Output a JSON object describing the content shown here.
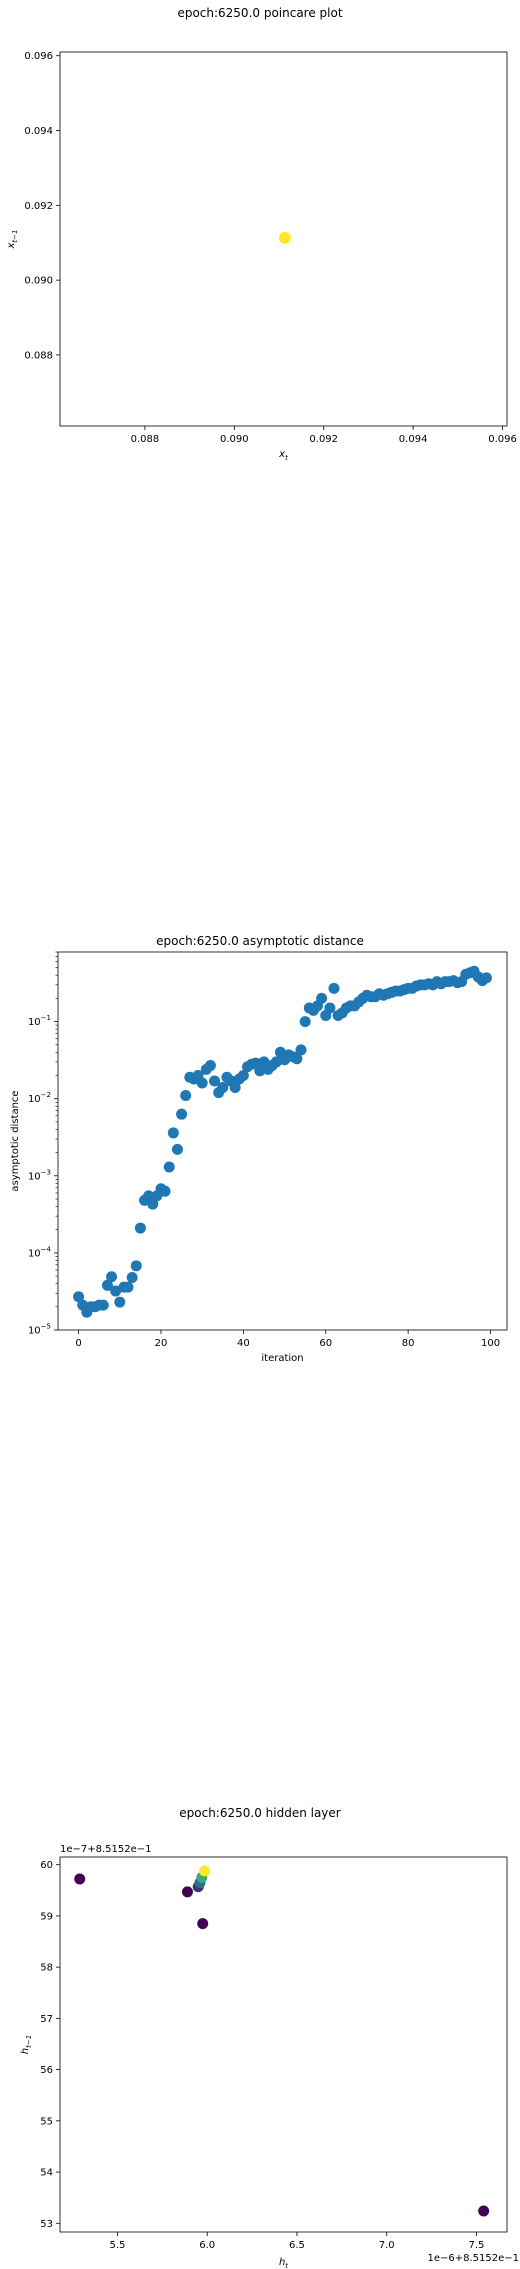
{
  "colors": {
    "viridis_low": "#440154",
    "viridis_high": "#fde725",
    "blue": "#1f77b4"
  },
  "chart_data": [
    {
      "type": "scatter",
      "title": "epoch:6250.0 poincare plot",
      "xlabel": "x_t",
      "ylabel": "x_{t-1}",
      "xlim": [
        0.0861,
        0.0961
      ],
      "ylim": [
        0.0861,
        0.0961
      ],
      "xticks": [
        0.088,
        0.09,
        0.092,
        0.094,
        0.096
      ],
      "xtick_labels": [
        "0.088",
        "0.090",
        "0.092",
        "0.094",
        "0.096"
      ],
      "yticks": [
        0.088,
        0.09,
        0.092,
        0.094,
        0.096
      ],
      "ytick_labels": [
        "0.088",
        "0.090",
        "0.092",
        "0.094",
        "0.096"
      ],
      "points": [
        {
          "x": 0.09113,
          "y": 0.09113
        }
      ],
      "point_color": "#fde725"
    },
    {
      "type": "scatter",
      "title": "epoch:6250.0 asymptotic distance",
      "xlabel": "iteration",
      "ylabel": "asymptotic distance",
      "yscale": "log",
      "xlim": [
        -5,
        104
      ],
      "ylim": [
        1e-05,
        0.8
      ],
      "xticks": [
        0,
        20,
        40,
        60,
        80,
        100
      ],
      "xtick_labels": [
        "0",
        "20",
        "40",
        "60",
        "80",
        "100"
      ],
      "yticks": [
        1e-05,
        0.0001,
        0.001,
        0.01,
        0.1
      ],
      "ytick_exponents": [
        "−5",
        "−4",
        "−3",
        "−2",
        "−1"
      ],
      "ytick_base": "10",
      "x": [
        0,
        1,
        2,
        3,
        4,
        5,
        6,
        7,
        8,
        9,
        10,
        11,
        12,
        13,
        14,
        15,
        16,
        17,
        18,
        19,
        20,
        21,
        22,
        23,
        24,
        25,
        26,
        27,
        28,
        29,
        30,
        31,
        32,
        33,
        34,
        35,
        36,
        37,
        38,
        39,
        40,
        41,
        42,
        43,
        44,
        45,
        46,
        47,
        48,
        49,
        50,
        51,
        52,
        53,
        54,
        55,
        56,
        57,
        58,
        59,
        60,
        61,
        62,
        63,
        64,
        65,
        66,
        67,
        68,
        69,
        70,
        71,
        72,
        73,
        74,
        75,
        76,
        77,
        78,
        79,
        80,
        81,
        82,
        83,
        84,
        85,
        86,
        87,
        88,
        89,
        90,
        91,
        92,
        93,
        94,
        95,
        96,
        97,
        98,
        99
      ],
      "y": [
        2.7e-05,
        2.1e-05,
        1.7e-05,
        2e-05,
        2e-05,
        2.1e-05,
        2.1e-05,
        3.8e-05,
        4.9e-05,
        3.2e-05,
        2.3e-05,
        3.6e-05,
        3.6e-05,
        4.8e-05,
        6.8e-05,
        0.00021,
        0.00048,
        0.00055,
        0.00043,
        0.00055,
        0.00068,
        0.00063,
        0.0013,
        0.0036,
        0.0022,
        0.0063,
        0.011,
        0.019,
        0.018,
        0.02,
        0.016,
        0.024,
        0.027,
        0.017,
        0.012,
        0.014,
        0.019,
        0.017,
        0.014,
        0.018,
        0.02,
        0.026,
        0.028,
        0.029,
        0.023,
        0.03,
        0.024,
        0.027,
        0.03,
        0.04,
        0.032,
        0.037,
        0.035,
        0.033,
        0.043,
        0.1,
        0.15,
        0.14,
        0.16,
        0.2,
        0.12,
        0.15,
        0.27,
        0.12,
        0.13,
        0.15,
        0.16,
        0.16,
        0.18,
        0.2,
        0.22,
        0.21,
        0.21,
        0.23,
        0.22,
        0.23,
        0.24,
        0.25,
        0.25,
        0.26,
        0.27,
        0.27,
        0.29,
        0.3,
        0.3,
        0.31,
        0.3,
        0.33,
        0.31,
        0.33,
        0.33,
        0.34,
        0.32,
        0.33,
        0.41,
        0.43,
        0.45,
        0.38,
        0.34,
        0.37
      ],
      "point_color": "#1f77b4"
    },
    {
      "type": "scatter",
      "title": "epoch:6250.0 hidden layer",
      "xlabel": "h_t",
      "ylabel": "h_{t-1}",
      "offset_x_label": "1e−6+8.5152e−1",
      "offset_y_label": "1e−7+8.5152e−1",
      "xlim": [
        5.18,
        7.67
      ],
      "ylim": [
        52.83,
        60.15
      ],
      "xticks": [
        5.5,
        6.0,
        6.5,
        7.0,
        7.5
      ],
      "xtick_labels": [
        "5.5",
        "6.0",
        "6.5",
        "7.0",
        "7.5"
      ],
      "yticks": [
        53,
        54,
        55,
        56,
        57,
        58,
        59,
        60
      ],
      "ytick_labels": [
        "53",
        "54",
        "55",
        "56",
        "57",
        "58",
        "59",
        "60"
      ],
      "points": [
        {
          "x": 5.29,
          "y": 59.72,
          "c": 0.0
        },
        {
          "x": 5.89,
          "y": 59.47,
          "c": 0.0
        },
        {
          "x": 5.95,
          "y": 59.57,
          "c": 0.15
        },
        {
          "x": 5.96,
          "y": 59.65,
          "c": 0.35
        },
        {
          "x": 5.97,
          "y": 59.75,
          "c": 0.6
        },
        {
          "x": 5.975,
          "y": 58.85,
          "c": 0.0
        },
        {
          "x": 5.985,
          "y": 59.88,
          "c": 1.0
        },
        {
          "x": 7.54,
          "y": 53.24,
          "c": 0.0
        }
      ]
    }
  ]
}
